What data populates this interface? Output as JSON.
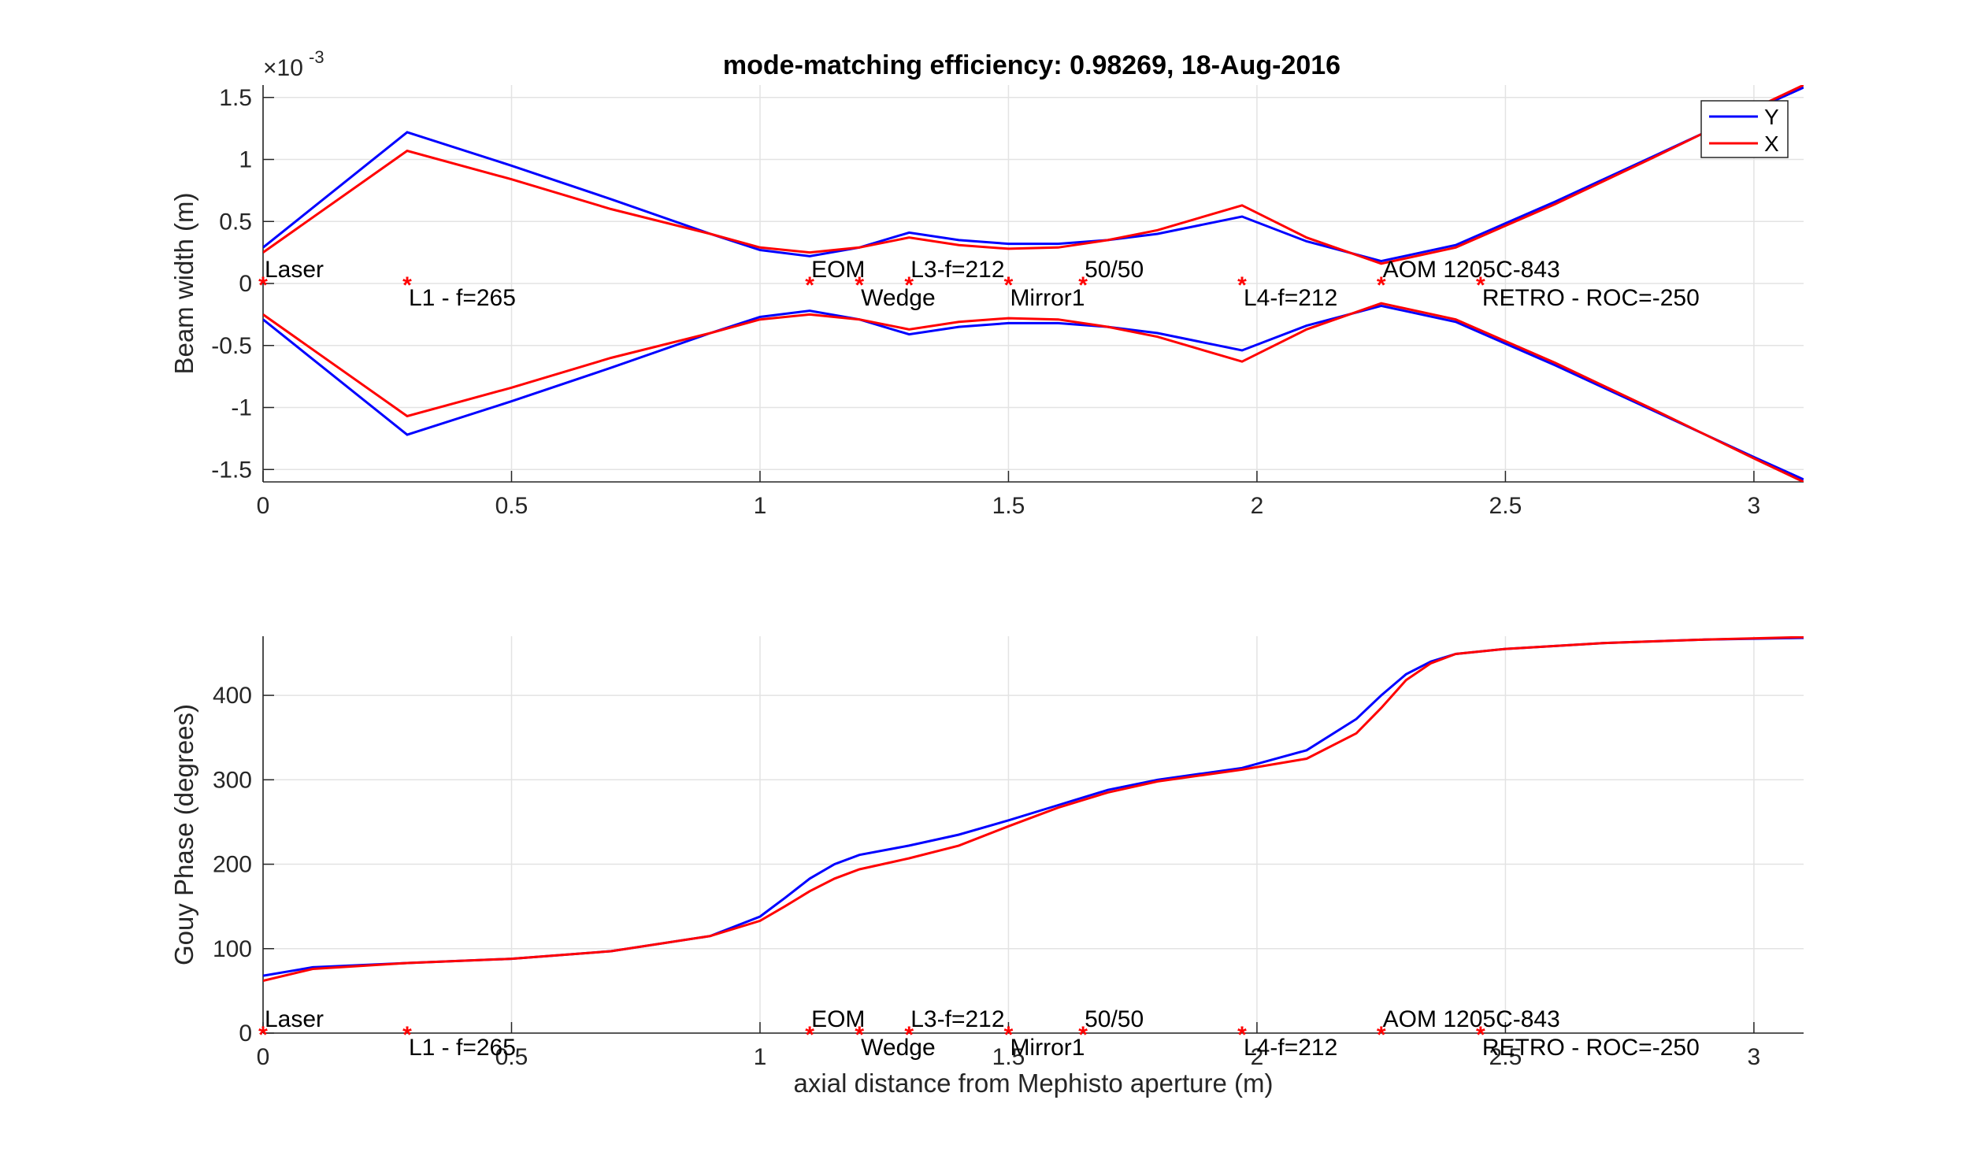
{
  "figure": {
    "title": "mode-matching efficiency: 0.98269, 18-Aug-2016"
  },
  "chart_data": [
    {
      "type": "line",
      "title": "mode-matching efficiency: 0.98269, 18-Aug-2016",
      "xlabel": "",
      "ylabel": "Beam width (m)",
      "xlim": [
        0,
        3.1
      ],
      "ylim": [
        -0.0016,
        0.0016
      ],
      "y_exponent_label": "×10",
      "y_exponent_power": "-3",
      "grid": true,
      "legend_position": "top-right",
      "xticks": [
        0,
        0.5,
        1,
        1.5,
        2,
        2.5,
        3
      ],
      "xtick_labels": [
        "0",
        "0.5",
        "1",
        "1.5",
        "2",
        "2.5",
        "3"
      ],
      "yticks": [
        -0.0015,
        -0.001,
        -0.0005,
        0,
        0.0005,
        0.001,
        0.0015
      ],
      "ytick_labels": [
        "-1.5",
        "-1",
        "-0.5",
        "0",
        "0.5",
        "1",
        "1.5"
      ],
      "series": [
        {
          "name": "Y",
          "color": "#0000ff",
          "mirrored": true,
          "x": [
            0,
            0.29,
            0.5,
            0.7,
            0.9,
            1.0,
            1.1,
            1.2,
            1.3,
            1.4,
            1.5,
            1.6,
            1.7,
            1.8,
            1.97,
            2.1,
            2.25,
            2.4,
            2.6,
            2.8,
            3.0,
            3.1
          ],
          "y": [
            0.00029,
            0.00122,
            0.00095,
            0.00068,
            0.0004,
            0.00027,
            0.00022,
            0.00029,
            0.00041,
            0.00035,
            0.00032,
            0.00032,
            0.00035,
            0.0004,
            0.00054,
            0.00034,
            0.00018,
            0.00031,
            0.00066,
            0.00103,
            0.0014,
            0.00158
          ]
        },
        {
          "name": "X",
          "color": "#ff0000",
          "mirrored": true,
          "x": [
            0,
            0.29,
            0.5,
            0.7,
            0.9,
            1.0,
            1.1,
            1.2,
            1.3,
            1.4,
            1.5,
            1.6,
            1.7,
            1.8,
            1.97,
            2.1,
            2.25,
            2.4,
            2.6,
            2.8,
            3.0,
            3.1
          ],
          "y": [
            0.00025,
            0.00107,
            0.00084,
            0.0006,
            0.0004,
            0.00029,
            0.00025,
            0.00029,
            0.00037,
            0.00031,
            0.00028,
            0.00029,
            0.00035,
            0.00043,
            0.00063,
            0.00037,
            0.00016,
            0.00029,
            0.00064,
            0.00102,
            0.00141,
            0.0016
          ]
        }
      ],
      "components": [
        {
          "x": 0,
          "label": "Laser",
          "pos": "above"
        },
        {
          "x": 0.29,
          "label": "L1 - f=265",
          "pos": "below"
        },
        {
          "x": 1.1,
          "label": "EOM",
          "pos": "above"
        },
        {
          "x": 1.2,
          "label": "Wedge",
          "pos": "below"
        },
        {
          "x": 1.3,
          "label": "L3-f=212",
          "pos": "above"
        },
        {
          "x": 1.5,
          "label": "Mirror1",
          "pos": "below"
        },
        {
          "x": 1.65,
          "label": "50/50",
          "pos": "above"
        },
        {
          "x": 1.97,
          "label": "L4-f=212",
          "pos": "below"
        },
        {
          "x": 2.25,
          "label": "AOM 1205C-843",
          "pos": "above"
        },
        {
          "x": 2.45,
          "label": "RETRO - ROC=-250",
          "pos": "below"
        }
      ]
    },
    {
      "type": "line",
      "title": "",
      "xlabel": "axial distance from Mephisto aperture (m)",
      "ylabel": "Gouy Phase (degrees)",
      "xlim": [
        0,
        3.1
      ],
      "ylim": [
        0,
        470
      ],
      "grid": true,
      "xticks": [
        0,
        0.5,
        1,
        1.5,
        2,
        2.5,
        3
      ],
      "xtick_labels": [
        "0",
        "0.5",
        "1",
        "1.5",
        "2",
        "2.5",
        "3"
      ],
      "yticks": [
        0,
        100,
        200,
        300,
        400
      ],
      "ytick_labels": [
        "0",
        "100",
        "200",
        "300",
        "400"
      ],
      "series": [
        {
          "name": "Y",
          "color": "#0000ff",
          "x": [
            0,
            0.1,
            0.29,
            0.5,
            0.7,
            0.9,
            1.0,
            1.05,
            1.1,
            1.15,
            1.2,
            1.3,
            1.4,
            1.5,
            1.6,
            1.7,
            1.8,
            1.97,
            2.1,
            2.2,
            2.25,
            2.3,
            2.35,
            2.4,
            2.5,
            2.7,
            2.9,
            3.1
          ],
          "y": [
            68,
            78,
            83,
            88,
            97,
            115,
            138,
            160,
            183,
            200,
            211,
            222,
            235,
            252,
            270,
            288,
            300,
            314,
            335,
            372,
            400,
            425,
            440,
            449,
            455,
            462,
            466,
            468
          ]
        },
        {
          "name": "X",
          "color": "#ff0000",
          "x": [
            0,
            0.1,
            0.29,
            0.5,
            0.7,
            0.9,
            1.0,
            1.05,
            1.1,
            1.15,
            1.2,
            1.3,
            1.4,
            1.5,
            1.6,
            1.7,
            1.8,
            1.97,
            2.1,
            2.2,
            2.25,
            2.3,
            2.35,
            2.4,
            2.5,
            2.7,
            2.9,
            3.1
          ],
          "y": [
            62,
            76,
            83,
            88,
            97,
            115,
            133,
            150,
            168,
            183,
            194,
            207,
            222,
            245,
            267,
            285,
            298,
            312,
            325,
            355,
            385,
            418,
            438,
            449,
            455,
            462,
            466,
            469
          ]
        }
      ],
      "components": [
        {
          "x": 0,
          "label": "Laser",
          "pos": "above"
        },
        {
          "x": 0.29,
          "label": "L1 - f=265",
          "pos": "below"
        },
        {
          "x": 1.1,
          "label": "EOM",
          "pos": "above"
        },
        {
          "x": 1.2,
          "label": "Wedge",
          "pos": "below"
        },
        {
          "x": 1.3,
          "label": "L3-f=212",
          "pos": "above"
        },
        {
          "x": 1.5,
          "label": "Mirror1",
          "pos": "below"
        },
        {
          "x": 1.65,
          "label": "50/50",
          "pos": "above"
        },
        {
          "x": 1.97,
          "label": "L4-f=212",
          "pos": "below"
        },
        {
          "x": 2.25,
          "label": "AOM 1205C-843",
          "pos": "above"
        },
        {
          "x": 2.45,
          "label": "RETRO - ROC=-250",
          "pos": "below"
        }
      ]
    }
  ]
}
